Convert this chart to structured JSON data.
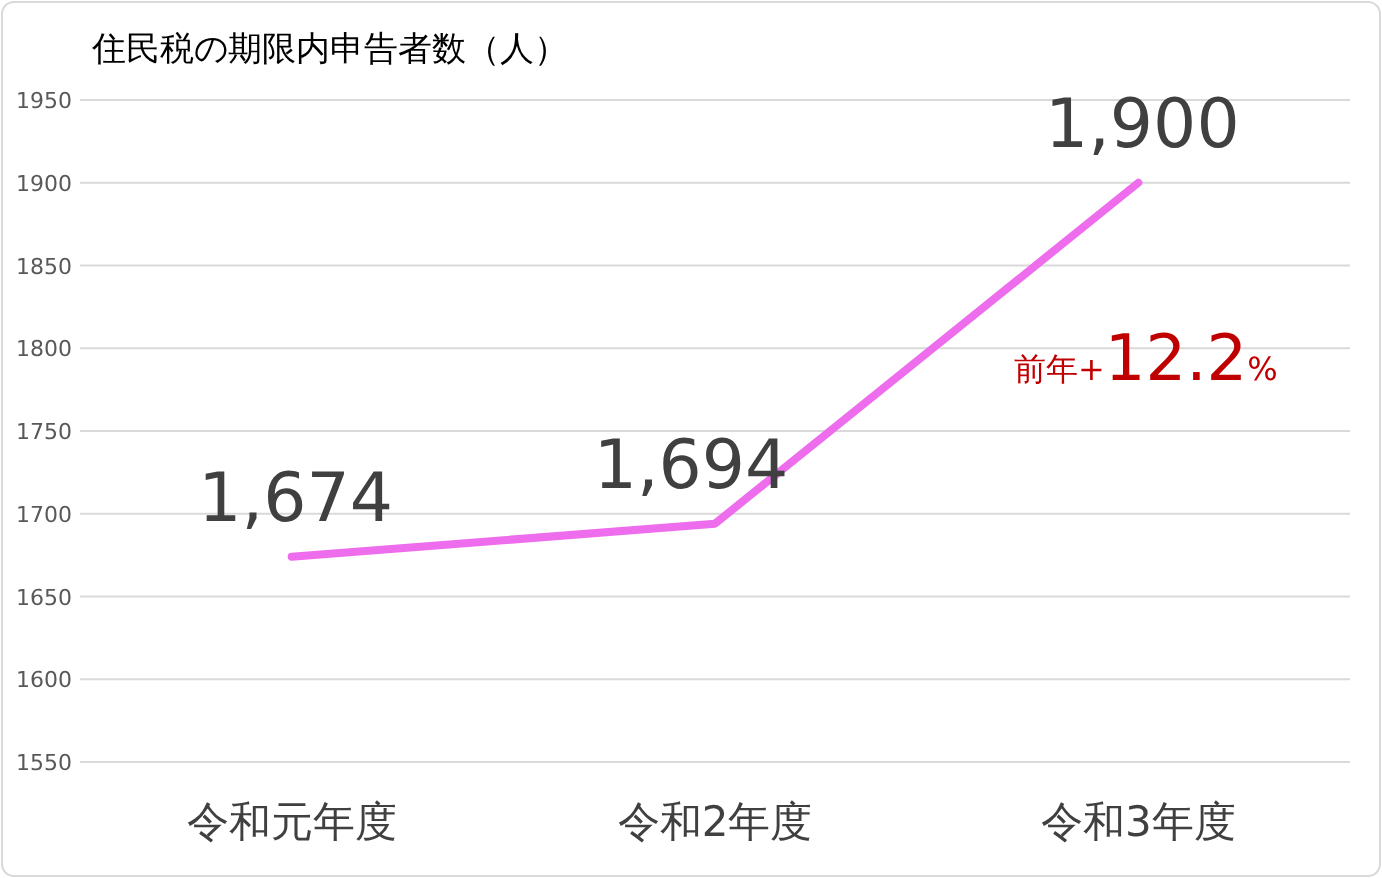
{
  "chart_data": {
    "type": "line",
    "title": "住民税の期限内申告者数（人）",
    "categories": [
      "令和元年度",
      "令和2年度",
      "令和3年度"
    ],
    "series": [
      {
        "color": "#ee6ded",
        "values": [
          1674,
          1694,
          1900
        ],
        "value_labels": [
          "1,674",
          "1,694",
          "1,900"
        ]
      }
    ],
    "ylim": [
      1550,
      1950
    ],
    "yticks": [
      1550,
      1600,
      1650,
      1700,
      1750,
      1800,
      1850,
      1900,
      1950
    ],
    "grid": "y",
    "marker": "none",
    "line_style": "solid",
    "annotations": [
      "前年+12.2%"
    ]
  }
}
